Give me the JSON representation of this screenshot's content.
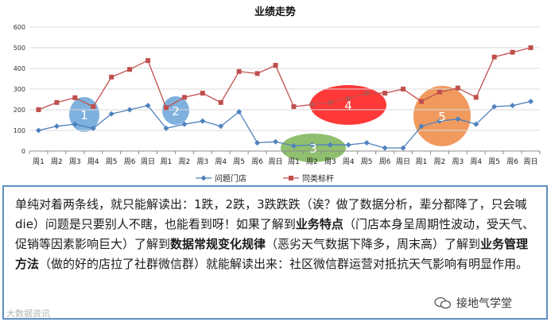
{
  "chart_data": {
    "type": "line",
    "title": "业绩走势",
    "ylim": [
      0,
      600
    ],
    "yticks": [
      0,
      100,
      200,
      300,
      400,
      500,
      600
    ],
    "categories": [
      "周1",
      "周2",
      "周3",
      "周4",
      "周5",
      "周6",
      "周日",
      "周1",
      "周2",
      "周3",
      "周4",
      "周5",
      "周6",
      "周日",
      "周1",
      "周2",
      "周3",
      "周4",
      "周5",
      "周6",
      "周日",
      "周1",
      "周2",
      "周3",
      "周4",
      "周5",
      "周6",
      "周日"
    ],
    "series": [
      {
        "name": "问题门店",
        "color": "#4f81bd",
        "marker": "diamond",
        "values": [
          100,
          120,
          130,
          110,
          180,
          200,
          220,
          110,
          130,
          145,
          120,
          190,
          40,
          45,
          25,
          30,
          30,
          30,
          40,
          15,
          15,
          120,
          145,
          155,
          130,
          215,
          220,
          240
        ]
      },
      {
        "name": "同类标杆",
        "color": "#c0504d",
        "marker": "square",
        "values": [
          200,
          235,
          258,
          215,
          358,
          395,
          438,
          210,
          260,
          280,
          235,
          385,
          375,
          415,
          215,
          225,
          235,
          255,
          280,
          280,
          300,
          240,
          285,
          305,
          260,
          455,
          478,
          500
        ]
      }
    ],
    "highlights": [
      {
        "label": "1",
        "color": "#5b9bd5"
      },
      {
        "label": "2",
        "color": "#5b9bd5"
      },
      {
        "label": "3",
        "color": "#70ad47"
      },
      {
        "label": "4",
        "color": "#ff0000"
      },
      {
        "label": "5",
        "color": "#ed7d31"
      }
    ]
  },
  "text_block": {
    "p1": "单纯对着两条线，就只能解读出：1跌，2跌，3跌跌跌（诶？做了数据分析，辈分都降了，只会喊die）问题是只要别人不瞎，也能看到呀！如果了解到",
    "b1": "业务特点",
    "p2": "（门店本身呈周期性波动，受天气、促销等因素影响巨大）了解到",
    "b2": "数据常规变化规律",
    "p3": "（恶劣天气数据下降多，周末高）了解到",
    "b3": "业务管理方法",
    "p4": "（做的好的店拉了社群微信群）就能解读出来：社区微信群运营对抵抗天气影响有明显作用。"
  },
  "watermark_right": "接地气学堂",
  "watermark_left": "大数据资讯"
}
